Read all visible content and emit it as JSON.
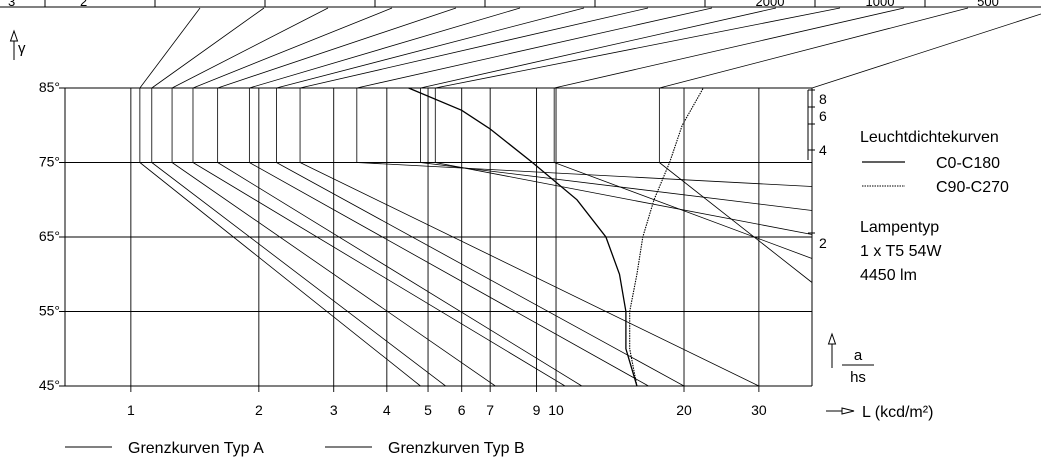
{
  "chart_data": {
    "type": "line",
    "y_axis_symbol": "γ",
    "x_axis_label": "L (kcd/m²)",
    "x_scale": "log",
    "x_ticks": [
      1,
      2,
      3,
      4,
      5,
      6,
      7,
      9,
      10,
      20,
      30
    ],
    "xlim": [
      0.7,
      40
    ],
    "y_ticks": [
      45,
      55,
      65,
      75,
      85
    ],
    "y_tick_labels": [
      "45°",
      "55°",
      "65°",
      "75°",
      "85°"
    ],
    "ylim": [
      45,
      85
    ],
    "top_table_fragments": [
      "3",
      "2",
      "2000",
      "1000",
      "500"
    ],
    "right_scale_label": "a/hs",
    "right_scale_numerator": "a",
    "right_scale_denominator": "hs",
    "right_scale_ticks": [
      "8",
      "6",
      "4",
      "2"
    ],
    "legend_title": "Leuchtdichtekurven",
    "legend_entries": [
      {
        "label": "C0-C180",
        "style": "solid"
      },
      {
        "label": "C90-C270",
        "style": "dashed"
      }
    ],
    "lamp_info": {
      "title": "Lampentyp",
      "lamp": "1 x T5 54W",
      "flux": "4450 lm"
    },
    "bottom_legend": [
      {
        "label": "Grenzkurven Typ A"
      },
      {
        "label": "Grenzkurven Typ B"
      }
    ],
    "limit_curves_B": [
      {
        "bend_L": 1.05,
        "end_L": 4.8
      },
      {
        "bend_L": 1.12,
        "end_L": 5.5
      },
      {
        "bend_L": 1.25,
        "end_L": 7.2
      },
      {
        "bend_L": 1.4,
        "end_L": 10.5
      },
      {
        "bend_L": 1.6,
        "end_L": 11.5
      },
      {
        "bend_L": 1.9,
        "end_L": 16.5
      },
      {
        "bend_L": 2.2,
        "end_L": 20
      },
      {
        "bend_L": 2.5,
        "end_L": 30
      }
    ],
    "limit_curves_A": [
      {
        "bend_L": 3.4,
        "end_L": 41
      },
      {
        "bend_L": 4.8,
        "end_L": 41
      },
      {
        "bend_L": 5.2,
        "end_L": 41
      },
      {
        "bend_L": 9.9,
        "end_L": 41
      },
      {
        "bend_L": 17.5,
        "end_L": 41
      }
    ],
    "series": [
      {
        "name": "C0-C180",
        "style": "solid",
        "points": [
          [
            15.5,
            45
          ],
          [
            14.6,
            50
          ],
          [
            14.6,
            55
          ],
          [
            14.1,
            60
          ],
          [
            13.1,
            65
          ],
          [
            11.2,
            70
          ],
          [
            8.8,
            75
          ],
          [
            7.0,
            79.5
          ],
          [
            6.0,
            82
          ],
          [
            4.5,
            85
          ]
        ]
      },
      {
        "name": "C90-C270",
        "style": "dashed",
        "points": [
          [
            15.5,
            45
          ],
          [
            14.9,
            50
          ],
          [
            14.9,
            55
          ],
          [
            15.5,
            60
          ],
          [
            16.0,
            65
          ],
          [
            17.0,
            70
          ],
          [
            18.5,
            75
          ],
          [
            19.8,
            80
          ],
          [
            22.2,
            85
          ]
        ]
      }
    ]
  }
}
